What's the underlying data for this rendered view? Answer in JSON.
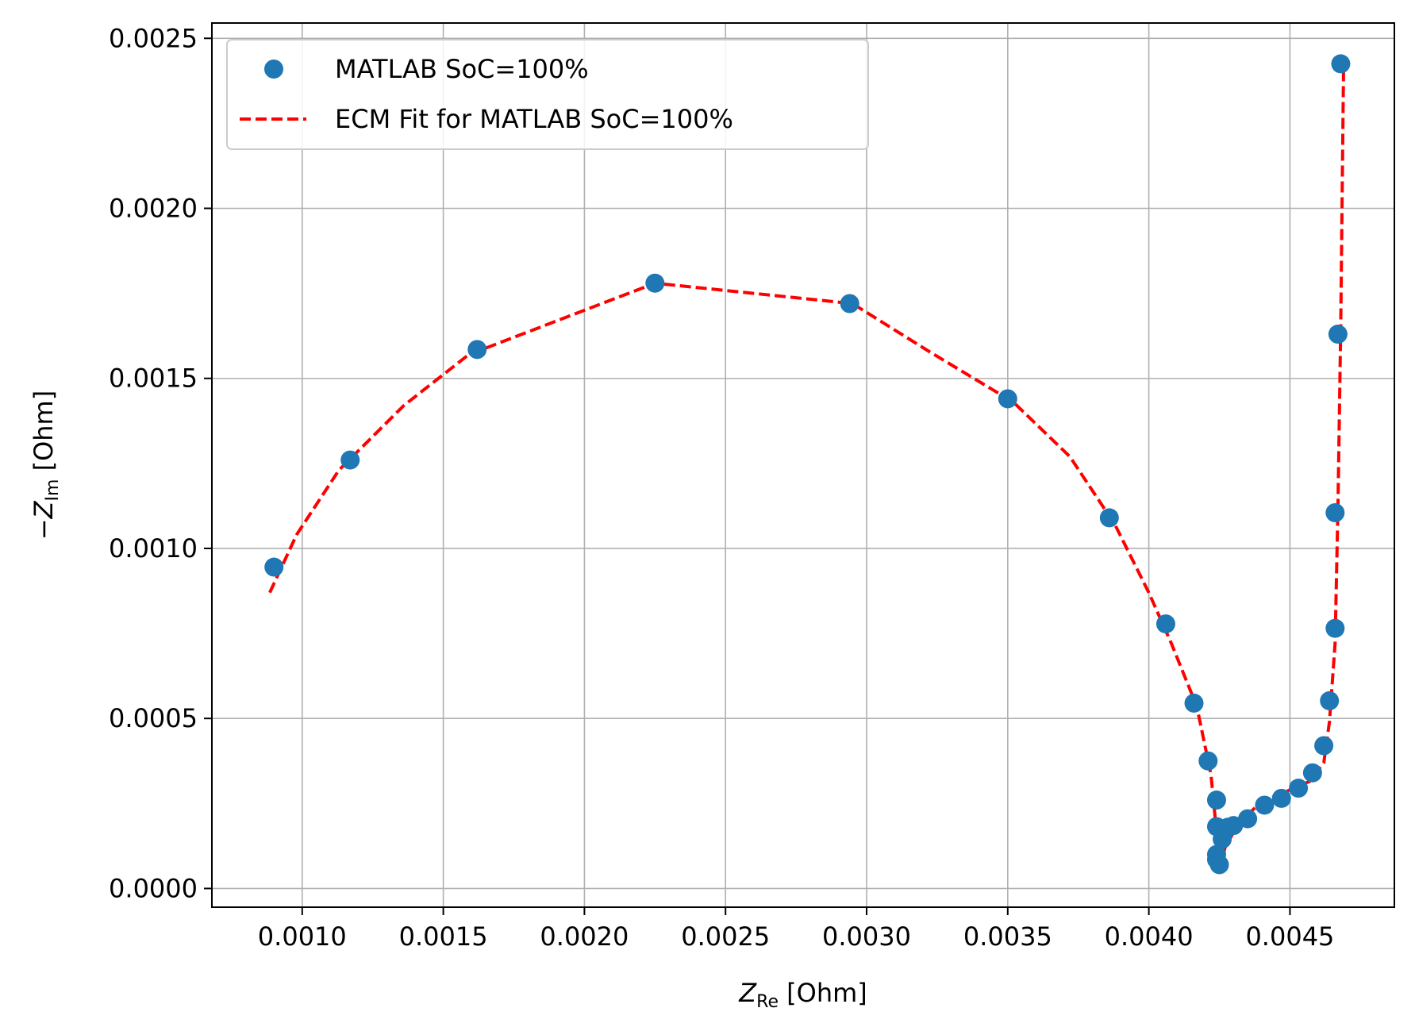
{
  "chart_data": {
    "type": "scatter",
    "title": "",
    "xlabel": {
      "symbol": "Z",
      "sub": "Re",
      "unit": " [Ohm]"
    },
    "ylabel": {
      "prefix": "−",
      "symbol": "Z",
      "sub": "Im",
      "unit": " [Ohm]"
    },
    "xlim": [
      0.00068,
      0.00487
    ],
    "ylim": [
      -5.5e-05,
      0.002545
    ],
    "xticks": [
      0.001,
      0.0015,
      0.002,
      0.0025,
      0.003,
      0.0035,
      0.004,
      0.0045
    ],
    "xtick_labels": [
      "0.0010",
      "0.0015",
      "0.0020",
      "0.0025",
      "0.0030",
      "0.0035",
      "0.0040",
      "0.0045"
    ],
    "yticks": [
      0.0,
      0.0005,
      0.001,
      0.0015,
      0.002,
      0.0025
    ],
    "ytick_labels": [
      "0.0000",
      "0.0005",
      "0.0010",
      "0.0015",
      "0.0020",
      "0.0025"
    ],
    "grid": true,
    "legend_position": "top-left",
    "series": [
      {
        "name": "MATLAB SoC=100%",
        "kind": "markers",
        "color": "#1f77b4",
        "points": [
          [
            0.0009,
            0.000945
          ],
          [
            0.00117,
            0.00126
          ],
          [
            0.00162,
            0.001585
          ],
          [
            0.00225,
            0.00178
          ],
          [
            0.00294,
            0.00172
          ],
          [
            0.0035,
            0.00144
          ],
          [
            0.00386,
            0.00109
          ],
          [
            0.00406,
            0.000778
          ],
          [
            0.00416,
            0.000545
          ],
          [
            0.00421,
            0.000375
          ],
          [
            0.00424,
            0.00026
          ],
          [
            0.00424,
            0.000182
          ],
          [
            0.00426,
            0.000145
          ],
          [
            0.00428,
            0.00018
          ],
          [
            0.0043,
            0.000185
          ],
          [
            0.00435,
            0.000205
          ],
          [
            0.00441,
            0.000245
          ],
          [
            0.00447,
            0.000265
          ],
          [
            0.00453,
            0.000295
          ],
          [
            0.00458,
            0.00034
          ],
          [
            0.00462,
            0.00042
          ],
          [
            0.00464,
            0.000552
          ],
          [
            0.00466,
            0.000765
          ],
          [
            0.00466,
            0.001105
          ],
          [
            0.00467,
            0.00163
          ],
          [
            0.00468,
            0.002425
          ],
          [
            0.00424,
            0.0001
          ],
          [
            0.00425,
            7e-05
          ],
          [
            0.00424,
            8.5e-05
          ]
        ]
      },
      {
        "name": "ECM Fit for MATLAB SoC=100%",
        "kind": "dashed-line",
        "color": "#ff0000",
        "points": [
          [
            0.000885,
            0.00087
          ],
          [
            0.00098,
            0.00104
          ],
          [
            0.00113,
            0.00123
          ],
          [
            0.00136,
            0.00142
          ],
          [
            0.00159,
            0.00157
          ],
          [
            0.00225,
            0.00178
          ],
          [
            0.00295,
            0.00172
          ],
          [
            0.00322,
            0.00158
          ],
          [
            0.00352,
            0.00143
          ],
          [
            0.00372,
            0.00127
          ],
          [
            0.00388,
            0.00107
          ],
          [
            0.004,
            0.00087
          ],
          [
            0.00408,
            0.00072
          ],
          [
            0.00417,
            0.000535
          ],
          [
            0.00422,
            0.000335
          ],
          [
            0.00424,
            0.000165
          ],
          [
            0.00425,
            5e-05
          ],
          [
            0.00427,
            0.00012
          ],
          [
            0.00432,
            0.000195
          ],
          [
            0.0044,
            0.000255
          ],
          [
            0.0045,
            0.00029
          ],
          [
            0.00457,
            0.000315
          ],
          [
            0.00462,
            0.00037
          ],
          [
            0.00464,
            0.00049
          ],
          [
            0.00466,
            0.00072
          ],
          [
            0.00467,
            0.00112
          ],
          [
            0.00468,
            0.00165
          ],
          [
            0.00469,
            0.00242
          ]
        ]
      }
    ]
  }
}
